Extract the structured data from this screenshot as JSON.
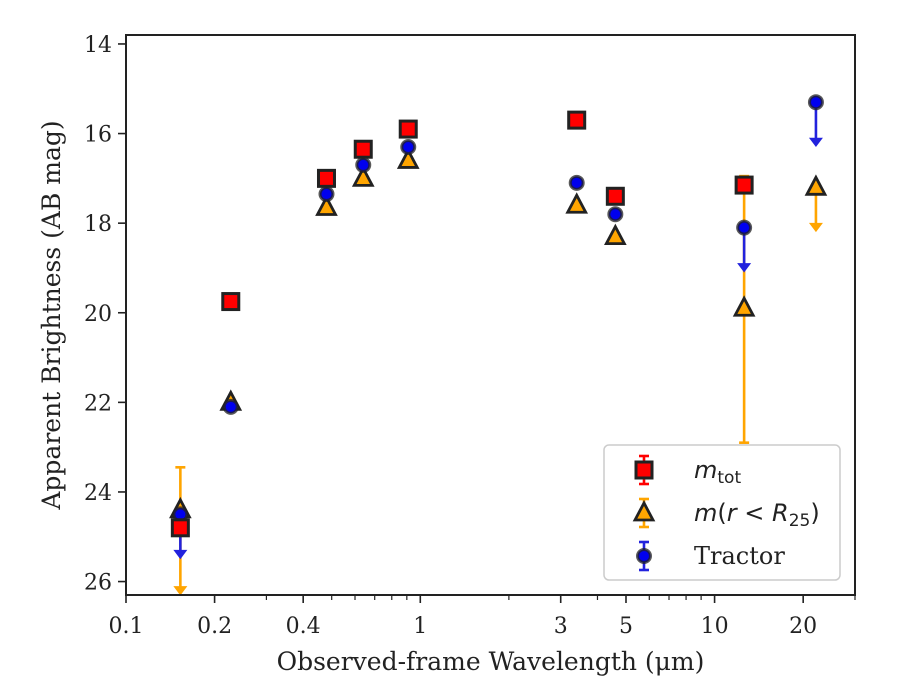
{
  "chart_data": {
    "type": "scatter",
    "xlabel": "Observed-frame Wavelength (μm)",
    "ylabel": "Apparent Brightness (AB mag)",
    "x_scale": "log",
    "xlim": [
      0.1,
      30
    ],
    "ylim": [
      26.3,
      13.8
    ],
    "y_inverted": true,
    "x_ticks": [
      0.1,
      0.2,
      0.4,
      1,
      3,
      5,
      10,
      20
    ],
    "x_tick_labels": [
      "0.1",
      "0.2",
      "0.4",
      "1",
      "3",
      "5",
      "10",
      "20"
    ],
    "y_ticks": [
      14,
      16,
      18,
      20,
      22,
      24,
      26
    ],
    "y_tick_labels": [
      "14",
      "16",
      "18",
      "20",
      "22",
      "24",
      "26"
    ],
    "legend": {
      "location": "lower right",
      "entries": [
        {
          "series": "m_tot",
          "parts": [
            {
              "text": "m",
              "style": "math"
            },
            {
              "text": "tot",
              "style": "sub-upright"
            }
          ]
        },
        {
          "series": "m_r25",
          "parts": [
            {
              "text": "m",
              "style": "math"
            },
            {
              "text": "(",
              "style": "upright"
            },
            {
              "text": "r",
              "style": "math"
            },
            {
              "text": " < ",
              "style": "upright"
            },
            {
              "text": "R",
              "style": "math"
            },
            {
              "text": "25",
              "style": "sub-upright"
            },
            {
              "text": ")",
              "style": "upright"
            }
          ]
        },
        {
          "series": "tractor",
          "parts": [
            {
              "text": "Tractor",
              "style": "serif"
            }
          ]
        }
      ]
    },
    "series": [
      {
        "key": "m_tot",
        "marker": "square",
        "color": "#ff0000",
        "edge_color": "#222222",
        "errorbar_color": "#ff0000",
        "points": [
          {
            "x": 0.153,
            "y": 24.8
          },
          {
            "x": 0.227,
            "y": 19.75
          },
          {
            "x": 0.48,
            "y": 17.0
          },
          {
            "x": 0.64,
            "y": 16.35
          },
          {
            "x": 0.91,
            "y": 15.9
          },
          {
            "x": 3.4,
            "y": 15.7
          },
          {
            "x": 4.6,
            "y": 17.4
          },
          {
            "x": 12.6,
            "y": 17.15
          }
        ]
      },
      {
        "key": "m_r25",
        "marker": "triangle",
        "color": "#ffa500",
        "edge_color": "#222222",
        "errorbar_color": "#ffa500",
        "points": [
          {
            "x": 0.153,
            "y": 24.4,
            "err_low": 0.95,
            "err_high": 1.0,
            "upper_limit": true
          },
          {
            "x": 0.227,
            "y": 22.0
          },
          {
            "x": 0.48,
            "y": 17.65
          },
          {
            "x": 0.64,
            "y": 17.0
          },
          {
            "x": 0.91,
            "y": 16.6
          },
          {
            "x": 3.4,
            "y": 17.6
          },
          {
            "x": 4.6,
            "y": 18.3
          },
          {
            "x": 12.6,
            "y": 19.9,
            "err_low": 2.95,
            "err_high": 3.0
          },
          {
            "x": 22.1,
            "y": 17.2,
            "upper_limit": true
          }
        ]
      },
      {
        "key": "tractor",
        "marker": "circle",
        "color": "#0000ee",
        "edge_color": "#222222",
        "errorbar_color": "#2222dd",
        "points": [
          {
            "x": 0.153,
            "y": 24.5,
            "upper_limit": true
          },
          {
            "x": 0.227,
            "y": 22.1
          },
          {
            "x": 0.48,
            "y": 17.35
          },
          {
            "x": 0.64,
            "y": 16.7
          },
          {
            "x": 0.91,
            "y": 16.3
          },
          {
            "x": 3.4,
            "y": 17.1
          },
          {
            "x": 4.6,
            "y": 17.8
          },
          {
            "x": 12.6,
            "y": 18.1,
            "upper_limit": true
          },
          {
            "x": 22.1,
            "y": 15.3,
            "upper_limit": true
          }
        ]
      }
    ]
  }
}
